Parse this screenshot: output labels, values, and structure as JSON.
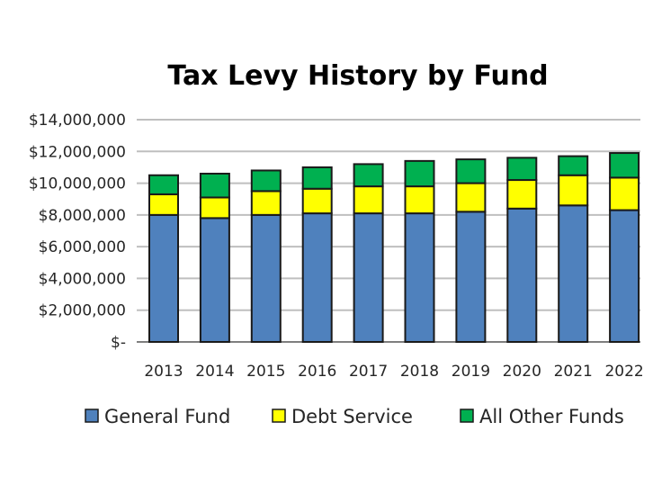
{
  "chart_data": {
    "type": "bar",
    "stacked": true,
    "title": "Tax Levy History by Fund",
    "xlabel": "",
    "ylabel": "",
    "categories": [
      "2013",
      "2014",
      "2015",
      "2016",
      "2017",
      "2018",
      "2019",
      "2020",
      "2021",
      "2022"
    ],
    "series": [
      {
        "name": "General Fund",
        "color": "#4f81bd",
        "values": [
          8000000,
          7800000,
          8000000,
          8100000,
          8100000,
          8100000,
          8200000,
          8400000,
          8600000,
          8300000
        ]
      },
      {
        "name": "Debt Service",
        "color": "#ffff00",
        "values": [
          1300000,
          1300000,
          1500000,
          1550000,
          1700000,
          1700000,
          1800000,
          1800000,
          1900000,
          2050000
        ]
      },
      {
        "name": "All Other Funds",
        "color": "#00b050",
        "values": [
          1200000,
          1500000,
          1300000,
          1350000,
          1400000,
          1600000,
          1500000,
          1400000,
          1200000,
          1550000
        ]
      }
    ],
    "ylim": [
      0,
      14000000
    ],
    "yticks": [
      0,
      2000000,
      4000000,
      6000000,
      8000000,
      10000000,
      12000000,
      14000000
    ],
    "ytick_labels": [
      "$-",
      "$2,000,000",
      "$4,000,000",
      "$6,000,000",
      "$8,000,000",
      "$10,000,000",
      "$12,000,000",
      "$14,000,000"
    ],
    "grid": true,
    "legend_position": "bottom"
  }
}
